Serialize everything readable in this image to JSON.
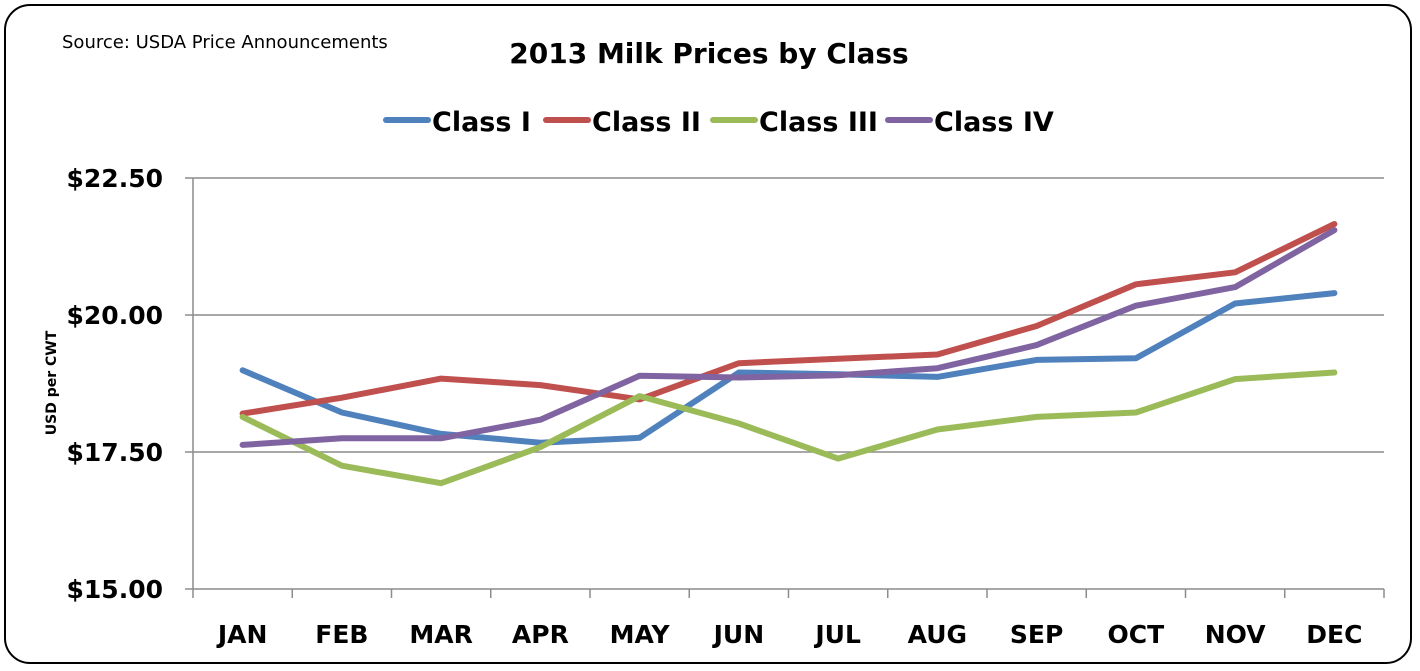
{
  "source": "Source: USDA Price Announcements",
  "chart_data": {
    "type": "line",
    "title": "2013 Milk Prices by Class",
    "xlabel": "",
    "ylabel": "USD per CWT",
    "ylim": [
      15,
      22.5
    ],
    "ytick_values": [
      15,
      17.5,
      20,
      22.5
    ],
    "ytick_labels": [
      "$15.00",
      "$17.50",
      "$20.00",
      "$22.50"
    ],
    "grid": true,
    "legend_position": "top",
    "categories": [
      "JAN",
      "FEB",
      "MAR",
      "APR",
      "MAY",
      "JUN",
      "JUL",
      "AUG",
      "SEP",
      "OCT",
      "NOV",
      "DEC"
    ],
    "series": [
      {
        "name": "Class I",
        "color": "#4F81BD",
        "values": [
          18.99,
          18.22,
          17.83,
          17.67,
          17.76,
          18.95,
          18.92,
          18.87,
          19.18,
          19.21,
          20.21,
          20.4
        ]
      },
      {
        "name": "Class II",
        "color": "#C0504D",
        "values": [
          18.2,
          18.49,
          18.84,
          18.72,
          18.46,
          19.12,
          19.2,
          19.28,
          19.8,
          20.56,
          20.78,
          21.66
        ]
      },
      {
        "name": "Class III",
        "color": "#9BBB59",
        "values": [
          18.14,
          17.25,
          16.93,
          17.59,
          18.52,
          18.02,
          17.38,
          17.91,
          18.14,
          18.22,
          18.83,
          18.95
        ]
      },
      {
        "name": "Class IV",
        "color": "#8064A2",
        "values": [
          17.63,
          17.75,
          17.75,
          18.09,
          18.89,
          18.86,
          18.9,
          19.03,
          19.45,
          20.17,
          20.51,
          21.55
        ]
      }
    ]
  }
}
